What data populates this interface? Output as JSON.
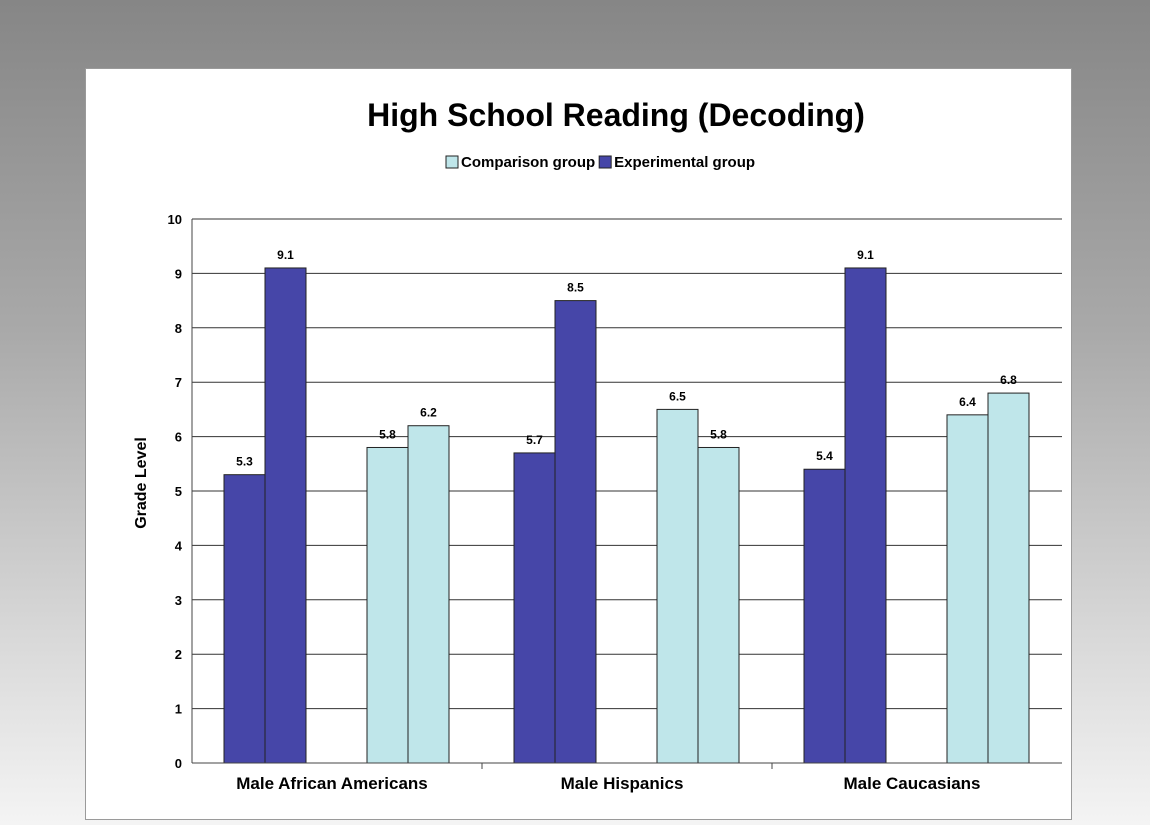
{
  "chart_data": {
    "type": "bar",
    "title": "High School Reading (Decoding)",
    "xlabel": "",
    "ylabel": "Grade Level",
    "ylim": [
      0,
      10
    ],
    "yticks": [
      0,
      1,
      2,
      3,
      4,
      5,
      6,
      7,
      8,
      9,
      10
    ],
    "grid": true,
    "legend_position": "top",
    "legend": [
      {
        "label": "Comparison group",
        "color": "#bfe6ea"
      },
      {
        "label": "Experimental group",
        "color": "#4646a8"
      }
    ],
    "categories": [
      "Male African Americans",
      "Male Hispanics",
      "Male Caucasians"
    ],
    "groups": [
      {
        "category": "Male African Americans",
        "bars": [
          {
            "value": 5.3,
            "label": "5.3",
            "color": "#4646a8"
          },
          {
            "value": 9.1,
            "label": "9.1",
            "color": "#4646a8"
          },
          {
            "value": 5.8,
            "label": "5.8",
            "color": "#bfe6ea"
          },
          {
            "value": 6.2,
            "label": "6.2",
            "color": "#bfe6ea"
          }
        ]
      },
      {
        "category": "Male Hispanics",
        "bars": [
          {
            "value": 5.7,
            "label": "5.7",
            "color": "#4646a8"
          },
          {
            "value": 8.5,
            "label": "8.5",
            "color": "#4646a8"
          },
          {
            "value": 6.5,
            "label": "6.5",
            "color": "#bfe6ea"
          },
          {
            "value": 5.8,
            "label": "5.8",
            "color": "#bfe6ea"
          }
        ]
      },
      {
        "category": "Male Caucasians",
        "bars": [
          {
            "value": 5.4,
            "label": "5.4",
            "color": "#4646a8"
          },
          {
            "value": 9.1,
            "label": "9.1",
            "color": "#4646a8"
          },
          {
            "value": 6.4,
            "label": "6.4",
            "color": "#bfe6ea"
          },
          {
            "value": 6.8,
            "label": "6.8",
            "color": "#bfe6ea"
          }
        ]
      }
    ]
  }
}
